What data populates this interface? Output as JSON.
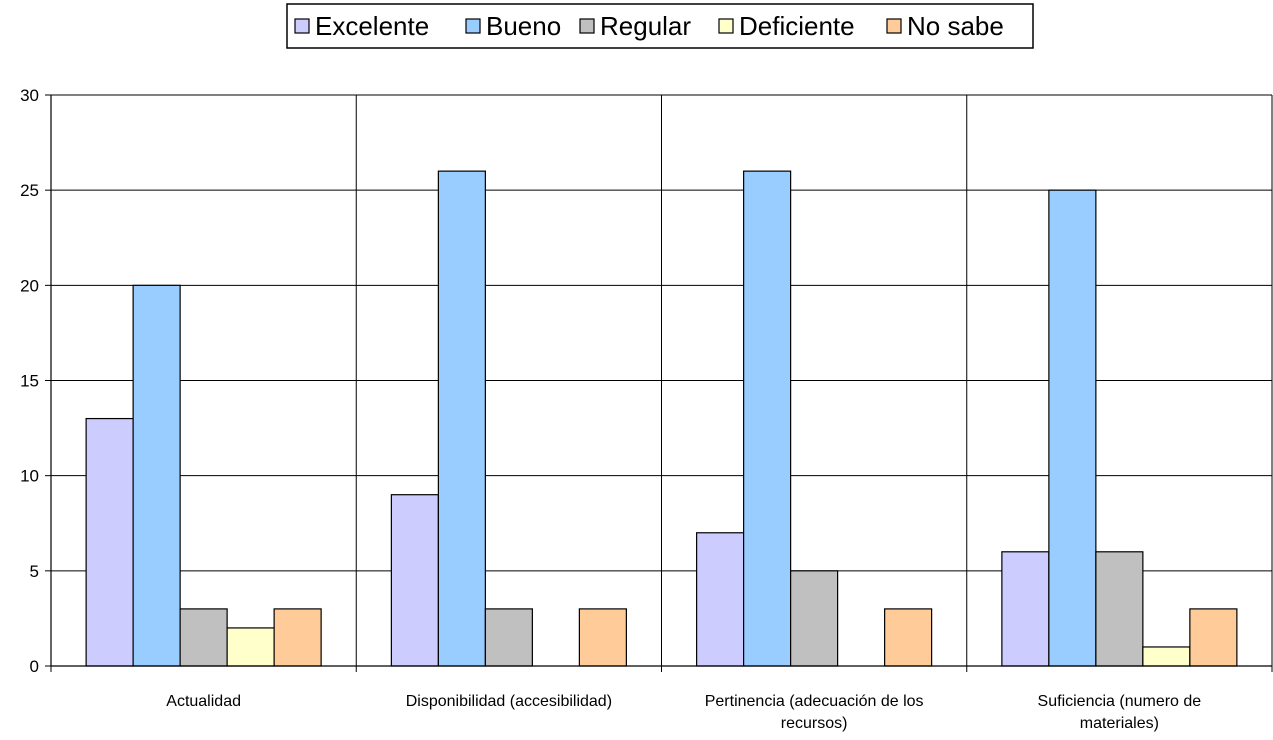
{
  "chart_data": {
    "type": "bar",
    "title": "",
    "xlabel": "",
    "ylabel": "",
    "ylim": [
      0,
      30
    ],
    "yticks": [
      0,
      5,
      10,
      15,
      20,
      25,
      30
    ],
    "grid": true,
    "legend_position": "top",
    "categories": [
      [
        "Actualidad"
      ],
      [
        "Disponibilidad (accesibilidad)"
      ],
      [
        "Pertinencia (adecuación de los",
        "recursos)"
      ],
      [
        "Suficiencia (numero de",
        "materiales)"
      ]
    ],
    "series": [
      {
        "name": "Excelente",
        "color": "#ccccff",
        "values": [
          13,
          9,
          7,
          6
        ]
      },
      {
        "name": "Bueno",
        "color": "#99ccff",
        "values": [
          20,
          26,
          26,
          25
        ]
      },
      {
        "name": "Regular",
        "color": "#c0c0c0",
        "values": [
          3,
          3,
          5,
          6
        ]
      },
      {
        "name": "Deficiente",
        "color": "#ffffcc",
        "values": [
          2,
          0,
          0,
          1
        ]
      },
      {
        "name": "No sabe",
        "color": "#ffcc99",
        "values": [
          3,
          3,
          3,
          3
        ]
      }
    ]
  }
}
